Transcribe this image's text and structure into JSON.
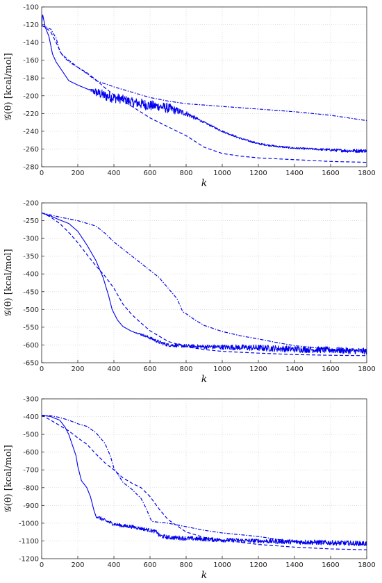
{
  "chart_data": [
    {
      "type": "line",
      "ylabel": "𝒢(θ)  [kcal/mol]",
      "xlabel": "k",
      "xlim": [
        0,
        1800
      ],
      "ylim": [
        -280,
        -100
      ],
      "xticks": [
        0,
        200,
        400,
        600,
        800,
        1000,
        1200,
        1400,
        1600,
        1800
      ],
      "yticks": [
        -100,
        -120,
        -140,
        -160,
        -180,
        -200,
        -220,
        -240,
        -260,
        -280
      ],
      "grid": true,
      "series": [
        {
          "style": "solid",
          "x": [
            0,
            5,
            20,
            40,
            60,
            80,
            100,
            150,
            200,
            260,
            300,
            350,
            400,
            450,
            500,
            550,
            600,
            650,
            700,
            750,
            800,
            850,
            900,
            1000,
            1100,
            1200,
            1300,
            1400,
            1500,
            1600,
            1700,
            1800
          ],
          "y": [
            -122,
            -108,
            -123,
            -133,
            -153,
            -162,
            -168,
            -183,
            -188,
            -193,
            -196,
            -200,
            -202,
            -204,
            -207,
            -209,
            -211,
            -212,
            -214,
            -217,
            -220,
            -225,
            -230,
            -240,
            -248,
            -254,
            -257,
            -259,
            -260,
            -261,
            -262,
            -262
          ],
          "noise": [
            0,
            0,
            0,
            0,
            0,
            0,
            0,
            0,
            0,
            0,
            5,
            6,
            6,
            5,
            5,
            6,
            6,
            5,
            6,
            4,
            3,
            2,
            1,
            1,
            1,
            1,
            1,
            1,
            1,
            1.5,
            2,
            2
          ]
        },
        {
          "style": "dashed",
          "x": [
            0,
            20,
            50,
            80,
            110,
            150,
            200,
            250,
            300,
            350,
            400,
            500,
            600,
            700,
            800,
            900,
            1000,
            1100,
            1200,
            1400,
            1600,
            1800
          ],
          "y": [
            -121,
            -123,
            -128,
            -140,
            -153,
            -160,
            -168,
            -174,
            -182,
            -191,
            -199,
            -212,
            -225,
            -235,
            -245,
            -258,
            -265,
            -268,
            -270,
            -272,
            -274,
            -275
          ]
        },
        {
          "style": "dashdot",
          "x": [
            0,
            20,
            50,
            80,
            100,
            130,
            160,
            200,
            250,
            300,
            400,
            500,
            600,
            700,
            800,
            1000,
            1200,
            1400,
            1600,
            1800
          ],
          "y": [
            -121,
            -122,
            -125,
            -135,
            -150,
            -158,
            -163,
            -168,
            -175,
            -183,
            -190,
            -196,
            -202,
            -206,
            -209,
            -212,
            -215,
            -218,
            -222,
            -228
          ]
        }
      ]
    },
    {
      "type": "line",
      "ylabel": "𝒢(θ)  [kcal/mol]",
      "xlabel": "k",
      "xlim": [
        0,
        1800
      ],
      "ylim": [
        -650,
        -200
      ],
      "xticks": [
        0,
        200,
        400,
        600,
        800,
        1000,
        1200,
        1400,
        1600,
        1800
      ],
      "yticks": [
        -200,
        -250,
        -300,
        -350,
        -400,
        -450,
        -500,
        -550,
        -600,
        -650
      ],
      "grid": true,
      "series": [
        {
          "style": "solid",
          "x": [
            0,
            50,
            100,
            150,
            200,
            250,
            300,
            340,
            370,
            390,
            400,
            420,
            450,
            500,
            550,
            600,
            650,
            700,
            800,
            900,
            1000,
            1100,
            1200,
            1300,
            1400,
            1500,
            1600,
            1700,
            1800
          ],
          "y": [
            -228,
            -237,
            -248,
            -258,
            -280,
            -318,
            -362,
            -410,
            -460,
            -500,
            -510,
            -530,
            -548,
            -562,
            -570,
            -580,
            -592,
            -600,
            -603,
            -605,
            -606,
            -607,
            -608,
            -610,
            -612,
            -613,
            -614,
            -616,
            -618
          ],
          "noise": [
            0,
            0,
            0,
            0,
            0,
            0,
            0,
            0,
            0,
            0,
            0,
            0,
            0,
            0,
            3,
            4,
            5,
            5,
            5,
            6,
            7,
            8,
            9,
            9,
            9,
            9,
            9,
            9,
            9
          ]
        },
        {
          "style": "dashed",
          "x": [
            0,
            50,
            100,
            150,
            200,
            250,
            300,
            350,
            400,
            450,
            500,
            550,
            600,
            700,
            800,
            900,
            1000,
            1200,
            1400,
            1600,
            1800
          ],
          "y": [
            -228,
            -240,
            -258,
            -283,
            -312,
            -345,
            -377,
            -406,
            -440,
            -485,
            -515,
            -538,
            -560,
            -590,
            -605,
            -613,
            -618,
            -623,
            -627,
            -629,
            -630
          ]
        },
        {
          "style": "dashdot",
          "x": [
            0,
            100,
            200,
            300,
            350,
            400,
            450,
            500,
            550,
            600,
            650,
            700,
            750,
            780,
            790,
            800,
            850,
            900,
            1000,
            1100,
            1200,
            1300,
            1400,
            1500,
            1600,
            1800
          ],
          "y": [
            -228,
            -240,
            -250,
            -265,
            -285,
            -310,
            -330,
            -350,
            -370,
            -390,
            -410,
            -440,
            -470,
            -505,
            -510,
            -512,
            -530,
            -545,
            -562,
            -574,
            -583,
            -593,
            -602,
            -607,
            -612,
            -618
          ]
        }
      ]
    },
    {
      "type": "line",
      "ylabel": "𝒢(θ)  [kcal/mol]",
      "xlabel": "k",
      "xlim": [
        0,
        1800
      ],
      "ylim": [
        -1200,
        -300
      ],
      "xticks": [
        0,
        200,
        400,
        600,
        800,
        1000,
        1200,
        1400,
        1600,
        1800
      ],
      "yticks": [
        -300,
        -400,
        -500,
        -600,
        -700,
        -800,
        -900,
        -1000,
        -1100,
        -1200
      ],
      "grid": true,
      "series": [
        {
          "style": "solid",
          "x": [
            0,
            50,
            100,
            130,
            150,
            170,
            190,
            200,
            220,
            250,
            270,
            290,
            300,
            320,
            350,
            400,
            450,
            500,
            550,
            600,
            640,
            650,
            700,
            800,
            900,
            1000,
            1200,
            1400,
            1600,
            1800
          ],
          "y": [
            -392,
            -400,
            -420,
            -460,
            -500,
            -560,
            -620,
            -680,
            -760,
            -800,
            -850,
            -930,
            -960,
            -970,
            -985,
            -1005,
            -1015,
            -1020,
            -1030,
            -1040,
            -1050,
            -1070,
            -1080,
            -1085,
            -1090,
            -1095,
            -1100,
            -1105,
            -1110,
            -1115
          ],
          "noise": [
            0,
            0,
            0,
            0,
            0,
            0,
            0,
            0,
            0,
            0,
            0,
            0,
            8,
            10,
            10,
            10,
            10,
            10,
            10,
            10,
            10,
            12,
            12,
            12,
            12,
            12,
            12,
            14,
            14,
            14
          ]
        },
        {
          "style": "dashed",
          "x": [
            0,
            50,
            100,
            150,
            200,
            250,
            300,
            350,
            400,
            450,
            500,
            550,
            600,
            650,
            700,
            800,
            900,
            1000,
            1200,
            1400,
            1600,
            1800
          ],
          "y": [
            -392,
            -420,
            -450,
            -480,
            -520,
            -555,
            -610,
            -660,
            -700,
            -745,
            -775,
            -800,
            -850,
            -920,
            -980,
            -1050,
            -1080,
            -1095,
            -1120,
            -1135,
            -1145,
            -1150
          ]
        },
        {
          "style": "dashdot",
          "x": [
            0,
            50,
            100,
            150,
            200,
            250,
            300,
            350,
            380,
            400,
            450,
            500,
            550,
            580,
            600,
            610,
            650,
            700,
            800,
            900,
            1000,
            1200,
            1300,
            1400,
            1600,
            1800
          ],
          "y": [
            -392,
            -395,
            -405,
            -420,
            -440,
            -455,
            -490,
            -550,
            -620,
            -690,
            -770,
            -810,
            -860,
            -920,
            -970,
            -990,
            -995,
            -1000,
            -1020,
            -1040,
            -1055,
            -1075,
            -1090,
            -1105,
            -1115,
            -1120
          ]
        }
      ]
    }
  ]
}
